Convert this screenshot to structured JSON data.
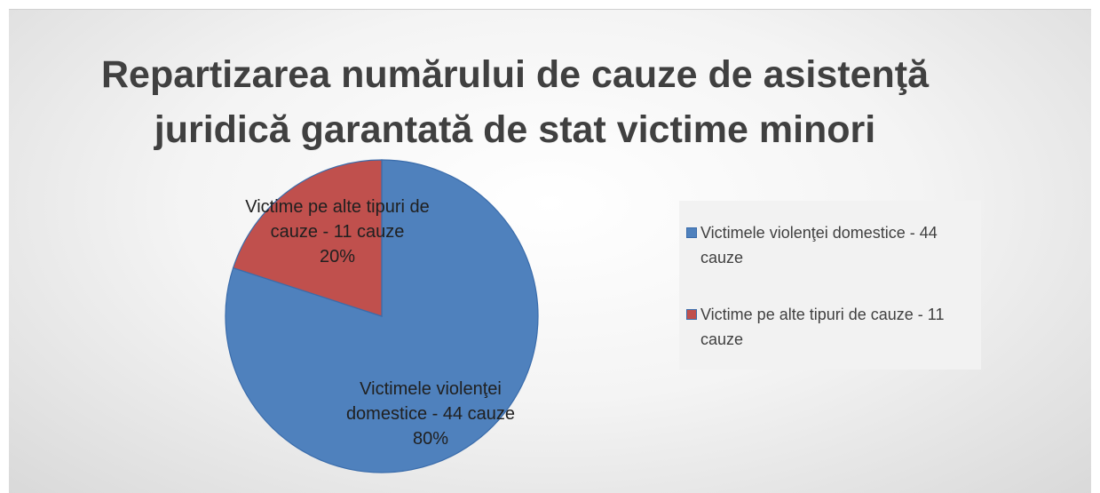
{
  "chart_data": {
    "type": "pie",
    "title": "Repartizarea numărului de cauze de asistenţă juridică garantată de stat victime minori",
    "categories": [
      "Victimele violenţei domestice - 44 cauze",
      "Victime pe alte tipuri de cauze - 11 cauze"
    ],
    "values": [
      80,
      20
    ],
    "value_labels": [
      "80%",
      "20%"
    ],
    "colors": [
      "#4f81bd",
      "#c0504d"
    ],
    "legend": "right"
  }
}
